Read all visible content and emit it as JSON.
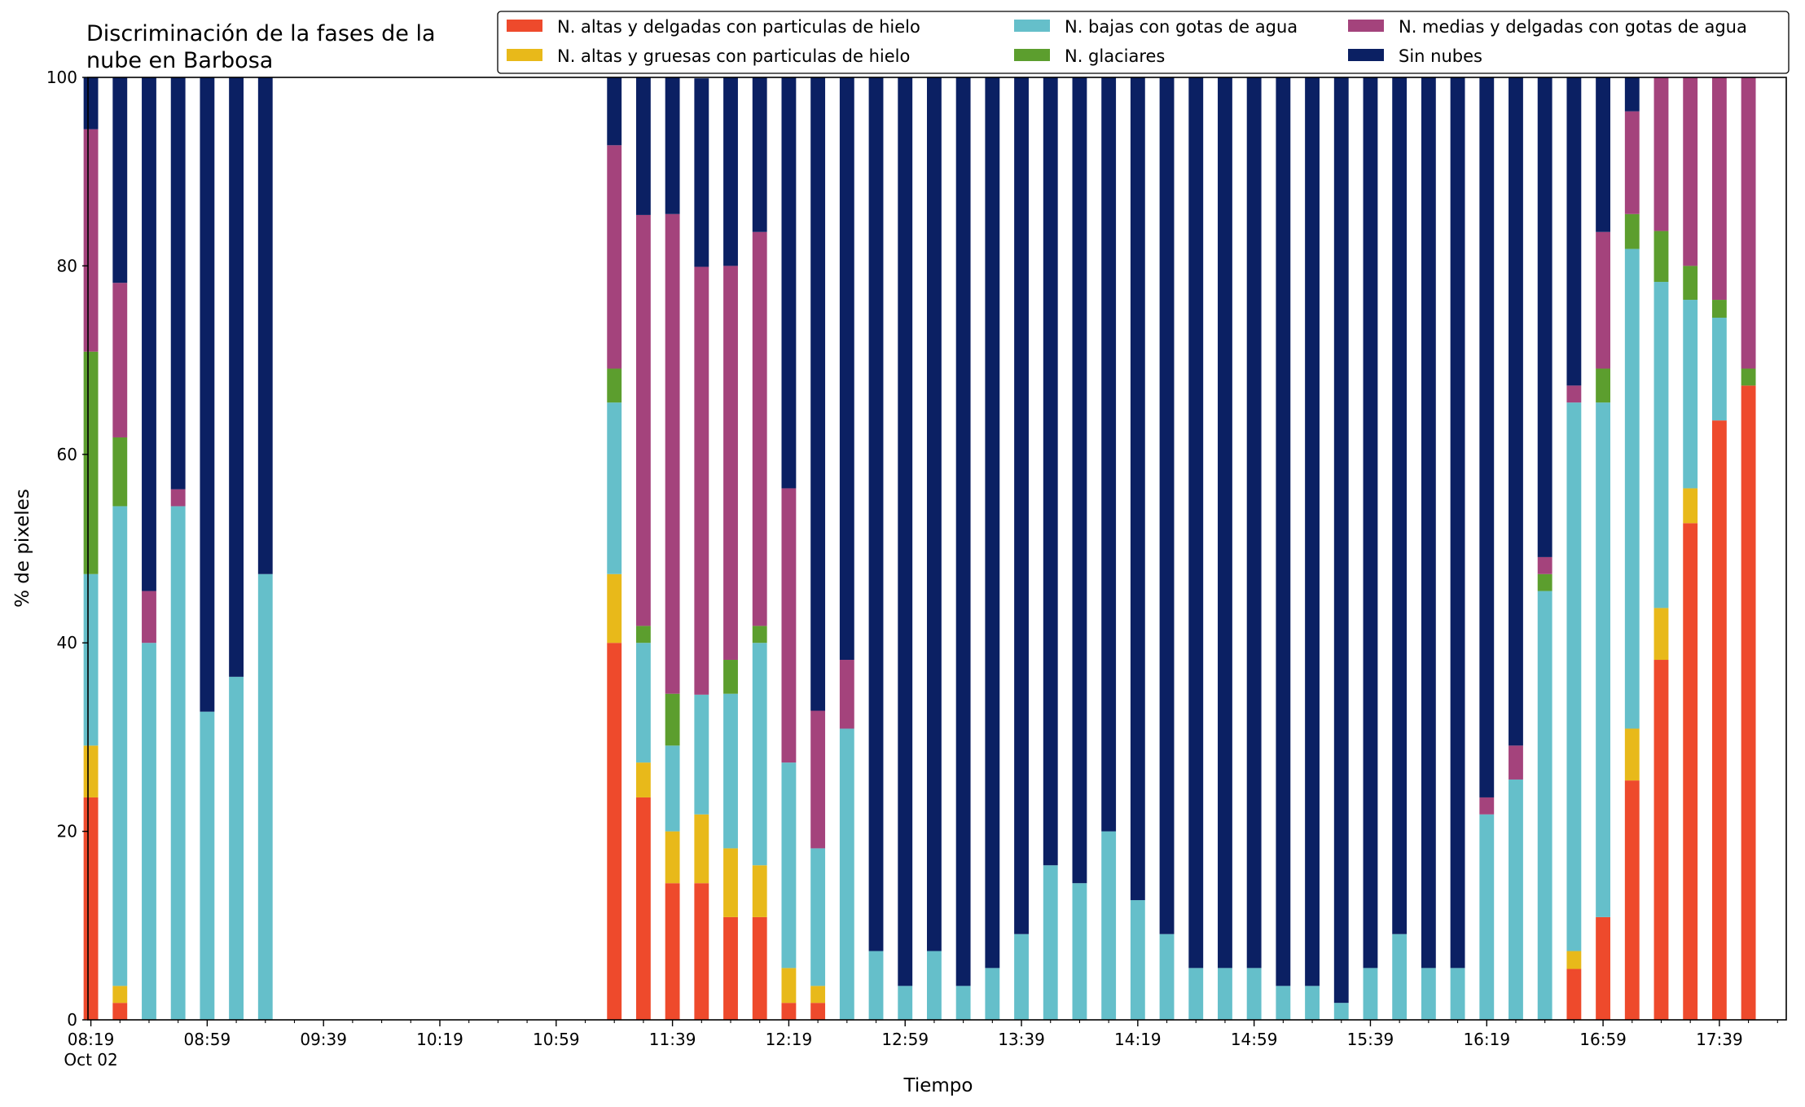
{
  "chart_data": {
    "type": "bar",
    "stacked": true,
    "title": "Discriminación de la fases de la nube en Barbosa",
    "title_lines": [
      "Discriminación de la fases de la",
      "nube en Barbosa"
    ],
    "xlabel": "Tiempo",
    "ylabel": "% de pixeles",
    "ylim": [
      0,
      100
    ],
    "yticks": [
      "0",
      "20",
      "40",
      "60",
      "80",
      "100"
    ],
    "xticks": [
      {
        "label": "08:19",
        "sublabel": "Oct 02",
        "minute": 0
      },
      {
        "label": "08:59",
        "minute": 40
      },
      {
        "label": "09:39",
        "minute": 80
      },
      {
        "label": "10:19",
        "minute": 120
      },
      {
        "label": "10:59",
        "minute": 160
      },
      {
        "label": "11:39",
        "minute": 200
      },
      {
        "label": "12:19",
        "minute": 240
      },
      {
        "label": "12:59",
        "minute": 280
      },
      {
        "label": "13:39",
        "minute": 320
      },
      {
        "label": "14:19",
        "minute": 360
      },
      {
        "label": "14:59",
        "minute": 400
      },
      {
        "label": "15:39",
        "minute": 440
      },
      {
        "label": "16:19",
        "minute": 480
      },
      {
        "label": "16:59",
        "minute": 520
      },
      {
        "label": "17:39",
        "minute": 560
      }
    ],
    "x_range_minutes": [
      -1,
      583
    ],
    "minor_tick_step_minutes": 10,
    "bar_width_minutes": 5,
    "legend_position": "top-right",
    "x_minutes": [
      0,
      10,
      20,
      30,
      40,
      50,
      60,
      180,
      190,
      200,
      210,
      220,
      230,
      240,
      250,
      260,
      270,
      280,
      290,
      300,
      310,
      320,
      330,
      340,
      350,
      360,
      370,
      380,
      390,
      400,
      410,
      420,
      430,
      440,
      450,
      460,
      470,
      480,
      490,
      500,
      510,
      520,
      530,
      540,
      550,
      560,
      570
    ],
    "series": [
      {
        "name": "N. altas y delgadas con particulas de hielo",
        "color": "#ee4a2c",
        "values": [
          23.6,
          1.8,
          0,
          0,
          0,
          0,
          0,
          40,
          23.6,
          14.5,
          14.5,
          10.9,
          10.9,
          1.8,
          1.8,
          0,
          0,
          0,
          0,
          0,
          0,
          0,
          0,
          0,
          0,
          0,
          0,
          0,
          0,
          0,
          0,
          0,
          0,
          0,
          0,
          0,
          0,
          0,
          0,
          0,
          5.4,
          10.9,
          25.4,
          38.2,
          52.7,
          63.6,
          67.3
        ]
      },
      {
        "name": "N. altas y gruesas con particulas de hielo",
        "color": "#e8b91a",
        "values": [
          5.5,
          1.8,
          0,
          0,
          0,
          0,
          0,
          7.3,
          3.7,
          5.5,
          7.3,
          7.3,
          5.5,
          3.7,
          1.8,
          0,
          0,
          0,
          0,
          0,
          0,
          0,
          0,
          0,
          0,
          0,
          0,
          0,
          0,
          0,
          0,
          0,
          0,
          0,
          0,
          0,
          0,
          0,
          0,
          0,
          1.9,
          0,
          5.5,
          5.5,
          3.7,
          0,
          0
        ]
      },
      {
        "name": "N. bajas con gotas de agua",
        "color": "#65bfca",
        "values": [
          18.2,
          50.9,
          40,
          54.5,
          32.7,
          36.4,
          47.3,
          18.2,
          12.7,
          9.1,
          12.7,
          16.4,
          23.6,
          21.8,
          14.6,
          30.9,
          7.3,
          3.6,
          7.3,
          3.6,
          5.5,
          9.1,
          16.4,
          14.5,
          20,
          12.7,
          9.1,
          5.5,
          5.5,
          5.5,
          3.6,
          3.6,
          1.8,
          5.5,
          9.1,
          5.5,
          5.5,
          21.8,
          25.5,
          45.5,
          58.2,
          54.6,
          50.9,
          34.6,
          20,
          10.9,
          0
        ]
      },
      {
        "name": "N. glaciares",
        "color": "#5c9e2e",
        "values": [
          23.6,
          7.3,
          0,
          0,
          0,
          0,
          0,
          3.6,
          1.8,
          5.5,
          0,
          3.6,
          1.8,
          0,
          0,
          0,
          0,
          0,
          0,
          0,
          0,
          0,
          0,
          0,
          0,
          0,
          0,
          0,
          0,
          0,
          0,
          0,
          0,
          0,
          0,
          0,
          0,
          0,
          0,
          1.8,
          0,
          3.6,
          3.7,
          5.4,
          3.6,
          1.9,
          1.8
        ]
      },
      {
        "name": "N. medias y delgadas con gotas de agua",
        "color": "#a4437c",
        "values": [
          23.6,
          16.4,
          5.5,
          1.8,
          0,
          0,
          0,
          23.7,
          43.6,
          50.9,
          45.4,
          41.8,
          41.8,
          29.1,
          14.6,
          7.3,
          0,
          0,
          0,
          0,
          0,
          0,
          0,
          0,
          0,
          0,
          0,
          0,
          0,
          0,
          0,
          0,
          0,
          0,
          0,
          0,
          0,
          1.8,
          3.6,
          1.8,
          1.8,
          14.5,
          10.9,
          16.3,
          20,
          23.6,
          30.9
        ]
      },
      {
        "name": "Sin nubes",
        "color": "#0b2063",
        "values": [
          5.5,
          21.8,
          54.5,
          43.7,
          67.3,
          63.6,
          52.7,
          7.2,
          14.6,
          14.5,
          20,
          20,
          16.4,
          43.6,
          67.2,
          61.8,
          92.7,
          96.4,
          92.7,
          96.4,
          94.5,
          90.9,
          83.6,
          85.5,
          80,
          87.3,
          90.9,
          94.5,
          94.5,
          94.5,
          96.4,
          96.4,
          98.2,
          94.5,
          90.9,
          94.5,
          94.5,
          76.4,
          70.9,
          50.9,
          32.7,
          16.4,
          3.6,
          0,
          0,
          0,
          0
        ]
      }
    ]
  }
}
